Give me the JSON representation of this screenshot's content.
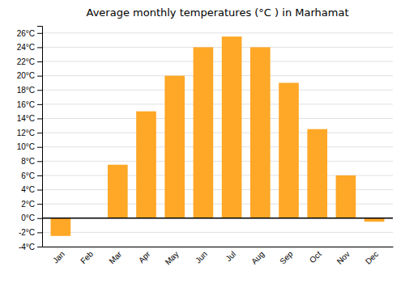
{
  "chart_data": {
    "type": "bar",
    "title": "Average monthly temperatures (°C ) in Marhamat",
    "categories": [
      "Jan",
      "Feb",
      "Mar",
      "Apr",
      "May",
      "Jun",
      "Jul",
      "Aug",
      "Sep",
      "Oct",
      "Nov",
      "Dec"
    ],
    "values": [
      -2.5,
      0,
      7.5,
      15,
      20,
      24,
      25.5,
      24,
      19,
      12.5,
      6,
      -0.5
    ],
    "color": "#FFA726",
    "ylim": [
      -4,
      27
    ],
    "yticks": [
      {
        "value": -4,
        "label": "-4°C"
      },
      {
        "value": -2,
        "label": "-2°C"
      },
      {
        "value": 0,
        "label": "0°C"
      },
      {
        "value": 2,
        "label": "2°C"
      },
      {
        "value": 4,
        "label": "4°C"
      },
      {
        "value": 6,
        "label": "6°C"
      },
      {
        "value": 8,
        "label": "8°C"
      },
      {
        "value": 10,
        "label": "10°C"
      },
      {
        "value": 12,
        "label": "12°C"
      },
      {
        "value": 14,
        "label": "14°C"
      },
      {
        "value": 16,
        "label": "16°C"
      },
      {
        "value": 18,
        "label": "18°C"
      },
      {
        "value": 20,
        "label": "20°C"
      },
      {
        "value": 22,
        "label": "22°C"
      },
      {
        "value": 24,
        "label": "24°C"
      },
      {
        "value": 26,
        "label": "26°C"
      }
    ],
    "grid": true
  }
}
